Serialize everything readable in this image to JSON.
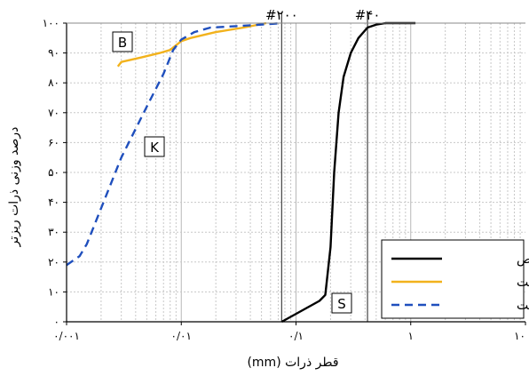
{
  "chart_data": {
    "type": "line",
    "xlabel": "قطر ذرات (mm)",
    "ylabel": "درصد وزنی ذرات ریزتر",
    "x_scale": "log",
    "xlim": [
      0.001,
      10
    ],
    "ylim": [
      0,
      100
    ],
    "grid": true,
    "legend_placement": "bottom-right",
    "x_ticks": [
      {
        "value": 0.001,
        "label": "۰/۰۰۱"
      },
      {
        "value": 0.01,
        "label": "۰/۰۱"
      },
      {
        "value": 0.1,
        "label": "۰/۱"
      },
      {
        "value": 1,
        "label": "۱"
      },
      {
        "value": 10,
        "label": "۱۰"
      }
    ],
    "y_ticks": [
      {
        "value": 0,
        "label": "۰"
      },
      {
        "value": 10,
        "label": "۱۰"
      },
      {
        "value": 20,
        "label": "۲۰"
      },
      {
        "value": 30,
        "label": "۳۰"
      },
      {
        "value": 40,
        "label": "۴۰"
      },
      {
        "value": 50,
        "label": "۵۰"
      },
      {
        "value": 60,
        "label": "۶۰"
      },
      {
        "value": 70,
        "label": "۷۰"
      },
      {
        "value": 80,
        "label": "۸۰"
      },
      {
        "value": 90,
        "label": "۹۰"
      },
      {
        "value": 100,
        "label": "۱۰۰"
      }
    ],
    "reference_lines": [
      {
        "x": 0.075,
        "label": "#۲۰۰"
      },
      {
        "x": 0.42,
        "label": "#۴۰"
      }
    ],
    "series": [
      {
        "name": "ماسه خالص",
        "tag": "S",
        "color": "#000000",
        "dash": "solid",
        "points": [
          [
            0.075,
            0
          ],
          [
            0.16,
            7
          ],
          [
            0.18,
            9
          ],
          [
            0.2,
            25
          ],
          [
            0.215,
            50
          ],
          [
            0.235,
            70
          ],
          [
            0.26,
            82
          ],
          [
            0.3,
            90
          ],
          [
            0.35,
            95
          ],
          [
            0.42,
            98.5
          ],
          [
            0.5,
            99.5
          ],
          [
            0.6,
            100
          ],
          [
            0.8,
            100
          ],
          [
            1.1,
            100
          ]
        ]
      },
      {
        "name": "رس بنتونیت",
        "tag": "B",
        "color": "#f2b21c",
        "dash": "solid",
        "points": [
          [
            0.0028,
            85.5
          ],
          [
            0.003,
            87
          ],
          [
            0.0045,
            88.5
          ],
          [
            0.0065,
            90
          ],
          [
            0.008,
            91
          ],
          [
            0.01,
            94
          ],
          [
            0.012,
            95
          ],
          [
            0.02,
            97
          ],
          [
            0.035,
            98.5
          ],
          [
            0.055,
            100
          ]
        ]
      },
      {
        "name": "رس کائولینیت",
        "tag": "K",
        "color": "#1f4fbd",
        "dash": "dashed",
        "points": [
          [
            0.001,
            19
          ],
          [
            0.0013,
            22
          ],
          [
            0.0015,
            26
          ],
          [
            0.002,
            38
          ],
          [
            0.003,
            55
          ],
          [
            0.005,
            72
          ],
          [
            0.007,
            83
          ],
          [
            0.0085,
            91
          ],
          [
            0.01,
            94.5
          ],
          [
            0.013,
            97
          ],
          [
            0.018,
            98.5
          ],
          [
            0.03,
            99
          ],
          [
            0.05,
            99.5
          ],
          [
            0.075,
            100
          ]
        ]
      }
    ]
  }
}
